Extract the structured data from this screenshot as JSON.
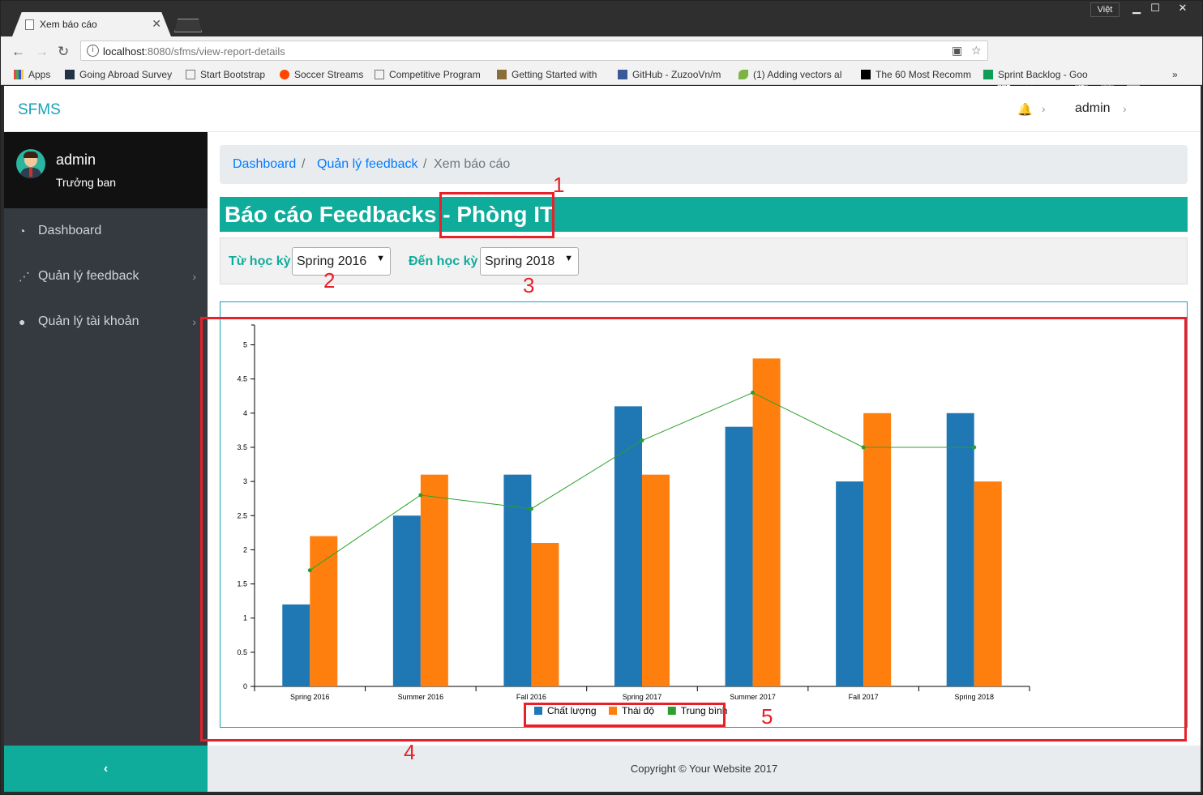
{
  "browser": {
    "tab_title": "Xem báo cáo",
    "url_host": "localhost",
    "url_rest": ":8080/sfms/view-report-details",
    "lang_label": "Việt",
    "bookmarks": [
      "Apps",
      "Going Abroad Survey",
      "Start Bootstrap",
      "Soccer Streams",
      "Competitive Program",
      "Getting Started with",
      "GitHub - ZuzooVn/m",
      "(1) Adding vectors al",
      "The 60 Most Recomm",
      "Sprint Backlog - Goo"
    ]
  },
  "topnav": {
    "brand": "SFMS",
    "user": "admin"
  },
  "sidebar": {
    "user_name": "admin",
    "user_role": "Trưởng ban",
    "items": [
      {
        "label": "Dashboard",
        "icon": "dashboard-icon"
      },
      {
        "label": "Quản lý feedback",
        "icon": "rss-icon"
      },
      {
        "label": "Quản lý tài khoản",
        "icon": "user-circle-icon"
      }
    ],
    "toggle": "‹"
  },
  "breadcrumb": {
    "item1": "Dashboard",
    "item2": "Quản lý feedback",
    "current": "Xem báo cáo",
    "sep": "/"
  },
  "report": {
    "title_prefix": "Báo cáo Feedbacks - ",
    "department": "Phòng IT"
  },
  "filter": {
    "from_label": "Từ học kỳ",
    "from_value": "Spring 2016",
    "to_label": "Đến học kỳ",
    "to_value": "Spring 2018"
  },
  "chart_data": {
    "type": "bar",
    "categories": [
      "Spring 2016",
      "Summer 2016",
      "Fall 2016",
      "Spring 2017",
      "Summer 2017",
      "Fall 2017",
      "Spring 2018"
    ],
    "series": [
      {
        "name": "Chất lượng",
        "type": "bar",
        "color": "#1f77b4",
        "values": [
          1.2,
          2.5,
          3.1,
          4.1,
          3.8,
          3.0,
          4.0
        ]
      },
      {
        "name": "Thái độ",
        "type": "bar",
        "color": "#ff7f0e",
        "values": [
          2.2,
          3.1,
          2.1,
          3.1,
          4.8,
          4.0,
          3.0
        ]
      },
      {
        "name": "Trung bình",
        "type": "line",
        "color": "#2ca02c",
        "values": [
          1.7,
          2.8,
          2.6,
          3.6,
          4.3,
          3.5,
          3.5
        ]
      }
    ],
    "yticks": [
      "0",
      "0.5",
      "1",
      "1.5",
      "2",
      "2.5",
      "3",
      "3.5",
      "4",
      "4.5",
      "5"
    ],
    "ylim": [
      0,
      5.3
    ],
    "legend_position": "bottom-center"
  },
  "annotations": [
    "1",
    "2",
    "3",
    "4",
    "5"
  ],
  "footer": {
    "text": "Copyright © Your Website 2017"
  },
  "colors": {
    "accent": "#0fac9b",
    "link": "#007bff",
    "annotation": "#e8202a",
    "sidebar": "#343a40"
  }
}
